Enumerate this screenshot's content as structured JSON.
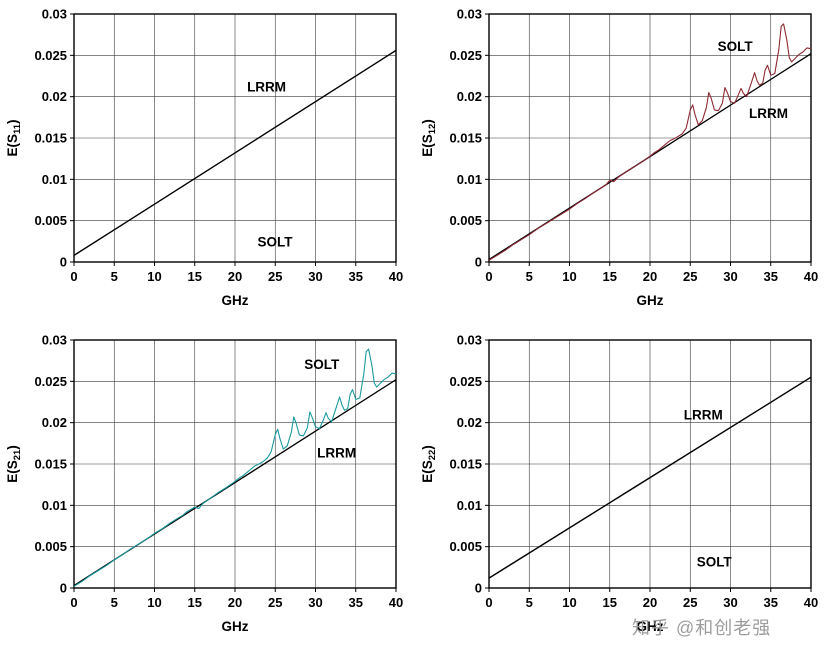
{
  "watermark": {
    "text": "知乎 @和创老强"
  },
  "chart_data": [
    {
      "type": "line",
      "position": "top-left",
      "ylabel": "E(S11)",
      "ylabel_pre": "E(S",
      "ylabel_sub": "11",
      "ylabel_post": ")",
      "xlabel": "GHz",
      "xlim": [
        0,
        40
      ],
      "ylim": [
        0,
        0.03
      ],
      "xticks": [
        "0",
        "5",
        "10",
        "15",
        "20",
        "25",
        "30",
        "35",
        "40"
      ],
      "yticks": [
        "0",
        "0.005",
        "0.01",
        "0.015",
        "0.02",
        "0.025",
        "0.03"
      ],
      "grid": true,
      "legend_position": "none",
      "annotations": [
        {
          "text": "LRRM",
          "x": 21.5,
          "y": 0.0206
        },
        {
          "text": "SOLT",
          "x": 22.8,
          "y": 0.0019
        }
      ],
      "series": [
        {
          "name": "LRRM/SOLT (overlapping)",
          "color": "#000000",
          "width": 1.4,
          "points": [
            [
              0,
              0.0008
            ],
            [
              40,
              0.0256
            ]
          ]
        }
      ]
    },
    {
      "type": "line",
      "position": "top-right",
      "ylabel": "E(S12)",
      "ylabel_pre": "E(S",
      "ylabel_sub": "12",
      "ylabel_post": ")",
      "xlabel": "GHz",
      "xlim": [
        0,
        40
      ],
      "ylim": [
        0,
        0.03
      ],
      "xticks": [
        "0",
        "5",
        "10",
        "15",
        "20",
        "25",
        "30",
        "35",
        "40"
      ],
      "yticks": [
        "0",
        "0.005",
        "0.01",
        "0.015",
        "0.02",
        "0.025",
        "0.03"
      ],
      "grid": true,
      "legend_position": "none",
      "annotations": [
        {
          "text": "SOLT",
          "x": 28.4,
          "y": 0.0255
        },
        {
          "text": "LRRM",
          "x": 32.3,
          "y": 0.0174
        }
      ],
      "series": [
        {
          "name": "LRRM",
          "color": "#000000",
          "width": 1.3,
          "points": [
            [
              0,
              0.0003
            ],
            [
              40,
              0.0252
            ]
          ]
        },
        {
          "name": "SOLT",
          "color": "#8e2a33",
          "width": 1.1,
          "points": [
            [
              0,
              0.0002
            ],
            [
              1,
              0.0008
            ],
            [
              2,
              0.0014
            ],
            [
              3,
              0.0021
            ],
            [
              4,
              0.0027
            ],
            [
              5,
              0.0033
            ],
            [
              6,
              0.004
            ],
            [
              7,
              0.0046
            ],
            [
              8,
              0.0052
            ],
            [
              9,
              0.0058
            ],
            [
              10,
              0.0064
            ],
            [
              11,
              0.0071
            ],
            [
              12,
              0.0077
            ],
            [
              13,
              0.0084
            ],
            [
              14,
              0.009
            ],
            [
              14.5,
              0.0093
            ],
            [
              15,
              0.0099
            ],
            [
              15.5,
              0.0097
            ],
            [
              16,
              0.0102
            ],
            [
              17,
              0.0109
            ],
            [
              18,
              0.0115
            ],
            [
              19,
              0.0121
            ],
            [
              20,
              0.0128
            ],
            [
              20.5,
              0.0132
            ],
            [
              21,
              0.0135
            ],
            [
              21.5,
              0.0139
            ],
            [
              22,
              0.0143
            ],
            [
              22.5,
              0.0147
            ],
            [
              23,
              0.0149
            ],
            [
              23.5,
              0.0152
            ],
            [
              24,
              0.0155
            ],
            [
              24.5,
              0.0162
            ],
            [
              25,
              0.0184
            ],
            [
              25.3,
              0.019
            ],
            [
              25.6,
              0.0178
            ],
            [
              26,
              0.0166
            ],
            [
              26.5,
              0.0171
            ],
            [
              27,
              0.0187
            ],
            [
              27.3,
              0.0205
            ],
            [
              27.6,
              0.0198
            ],
            [
              28,
              0.0184
            ],
            [
              28.5,
              0.0183
            ],
            [
              29,
              0.0192
            ],
            [
              29.3,
              0.0211
            ],
            [
              29.6,
              0.0205
            ],
            [
              30,
              0.0194
            ],
            [
              30.5,
              0.0192
            ],
            [
              31,
              0.0203
            ],
            [
              31.3,
              0.021
            ],
            [
              31.6,
              0.0204
            ],
            [
              32,
              0.02
            ],
            [
              32.5,
              0.0214
            ],
            [
              33,
              0.0229
            ],
            [
              33.3,
              0.0219
            ],
            [
              33.6,
              0.0214
            ],
            [
              34,
              0.0216
            ],
            [
              34.3,
              0.0232
            ],
            [
              34.6,
              0.0238
            ],
            [
              35,
              0.0226
            ],
            [
              35.5,
              0.0228
            ],
            [
              36,
              0.0257
            ],
            [
              36.3,
              0.0285
            ],
            [
              36.6,
              0.0288
            ],
            [
              37,
              0.0268
            ],
            [
              37.3,
              0.0247
            ],
            [
              37.6,
              0.0242
            ],
            [
              38,
              0.0246
            ],
            [
              38.5,
              0.0251
            ],
            [
              39,
              0.0254
            ],
            [
              39.5,
              0.0259
            ],
            [
              40,
              0.0258
            ]
          ]
        }
      ]
    },
    {
      "type": "line",
      "position": "bottom-left",
      "ylabel": "E(S21)",
      "ylabel_pre": "E(S",
      "ylabel_sub": "21",
      "ylabel_post": ")",
      "xlabel": "GHz",
      "xlim": [
        0,
        40
      ],
      "ylim": [
        0,
        0.03
      ],
      "xticks": [
        "0",
        "5",
        "10",
        "15",
        "20",
        "25",
        "30",
        "35",
        "40"
      ],
      "yticks": [
        "0",
        "0.005",
        "0.01",
        "0.015",
        "0.02",
        "0.025",
        "0.03"
      ],
      "grid": true,
      "legend_position": "none",
      "annotations": [
        {
          "text": "SOLT",
          "x": 28.6,
          "y": 0.0265
        },
        {
          "text": "LRRM",
          "x": 30.2,
          "y": 0.0158
        }
      ],
      "series": [
        {
          "name": "LRRM",
          "color": "#000000",
          "width": 1.3,
          "points": [
            [
              0,
              0.0003
            ],
            [
              40,
              0.0252
            ]
          ]
        },
        {
          "name": "SOLT",
          "color": "#1c9a9d",
          "width": 1.1,
          "points": [
            [
              0,
              0.0002
            ],
            [
              1,
              0.0008
            ],
            [
              2,
              0.0015
            ],
            [
              3,
              0.0021
            ],
            [
              4,
              0.0027
            ],
            [
              5,
              0.0034
            ],
            [
              6,
              0.004
            ],
            [
              7,
              0.0047
            ],
            [
              8,
              0.0053
            ],
            [
              9,
              0.0059
            ],
            [
              10,
              0.0066
            ],
            [
              11,
              0.0072
            ],
            [
              12,
              0.0079
            ],
            [
              13,
              0.0085
            ],
            [
              13.5,
              0.0088
            ],
            [
              14,
              0.0092
            ],
            [
              14.5,
              0.0095
            ],
            [
              15,
              0.0098
            ],
            [
              15.5,
              0.0096
            ],
            [
              16,
              0.0102
            ],
            [
              17,
              0.0109
            ],
            [
              18,
              0.0116
            ],
            [
              19,
              0.0122
            ],
            [
              20,
              0.0129
            ],
            [
              20.5,
              0.0133
            ],
            [
              21,
              0.0136
            ],
            [
              21.5,
              0.014
            ],
            [
              22,
              0.0144
            ],
            [
              22.5,
              0.0148
            ],
            [
              23,
              0.015
            ],
            [
              23.5,
              0.0153
            ],
            [
              24,
              0.0157
            ],
            [
              24.5,
              0.0165
            ],
            [
              25,
              0.0186
            ],
            [
              25.3,
              0.0192
            ],
            [
              25.6,
              0.018
            ],
            [
              26,
              0.0168
            ],
            [
              26.5,
              0.0172
            ],
            [
              27,
              0.0189
            ],
            [
              27.3,
              0.0207
            ],
            [
              27.6,
              0.0199
            ],
            [
              28,
              0.0185
            ],
            [
              28.5,
              0.0184
            ],
            [
              29,
              0.0194
            ],
            [
              29.3,
              0.0213
            ],
            [
              29.6,
              0.0206
            ],
            [
              30,
              0.0195
            ],
            [
              30.5,
              0.0193
            ],
            [
              31,
              0.0204
            ],
            [
              31.3,
              0.0212
            ],
            [
              31.6,
              0.0205
            ],
            [
              32,
              0.0201
            ],
            [
              32.5,
              0.0216
            ],
            [
              33,
              0.0231
            ],
            [
              33.3,
              0.0221
            ],
            [
              33.6,
              0.0215
            ],
            [
              34,
              0.0217
            ],
            [
              34.3,
              0.0234
            ],
            [
              34.6,
              0.024
            ],
            [
              35,
              0.0228
            ],
            [
              35.5,
              0.023
            ],
            [
              36,
              0.0259
            ],
            [
              36.3,
              0.0286
            ],
            [
              36.6,
              0.0289
            ],
            [
              37,
              0.0269
            ],
            [
              37.3,
              0.0248
            ],
            [
              37.6,
              0.0243
            ],
            [
              38,
              0.0247
            ],
            [
              38.5,
              0.0252
            ],
            [
              39,
              0.0255
            ],
            [
              39.5,
              0.026
            ],
            [
              40,
              0.0259
            ]
          ]
        }
      ]
    },
    {
      "type": "line",
      "position": "bottom-right",
      "ylabel": "E(S22)",
      "ylabel_pre": "E(S",
      "ylabel_sub": "22",
      "ylabel_post": ")",
      "xlabel": "GHz",
      "xlim": [
        0,
        40
      ],
      "ylim": [
        0,
        0.03
      ],
      "xticks": [
        "0",
        "5",
        "10",
        "15",
        "20",
        "25",
        "30",
        "35",
        "40"
      ],
      "yticks": [
        "0",
        "0.005",
        "0.01",
        "0.015",
        "0.02",
        "0.025",
        "0.03"
      ],
      "grid": true,
      "legend_position": "none",
      "annotations": [
        {
          "text": "LRRM",
          "x": 24.2,
          "y": 0.0204
        },
        {
          "text": "SOLT",
          "x": 25.8,
          "y": 0.0026
        }
      ],
      "series": [
        {
          "name": "LRRM/SOLT (overlapping)",
          "color": "#000000",
          "width": 1.4,
          "points": [
            [
              0,
              0.0012
            ],
            [
              40,
              0.0255
            ]
          ]
        }
      ]
    }
  ]
}
